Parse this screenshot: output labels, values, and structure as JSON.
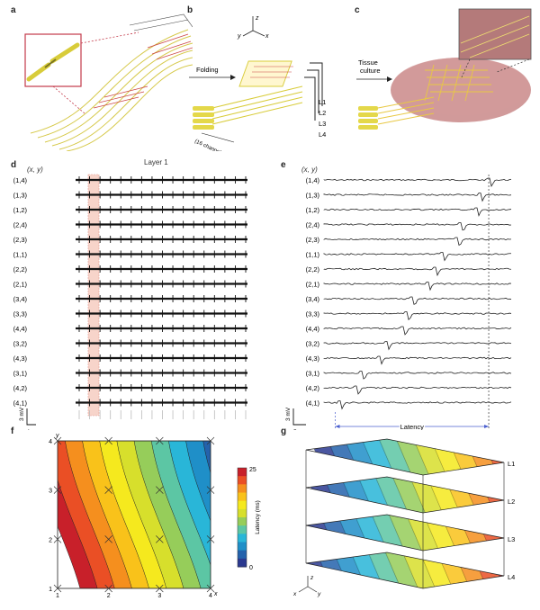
{
  "panels": {
    "a": {
      "label": "a"
    },
    "b": {
      "label": "b",
      "arrow_text": "Folding",
      "channels_text": "(16 channels)",
      "layers": [
        "L1",
        "L2",
        "L3",
        "L4"
      ],
      "axes": {
        "x": "x",
        "y": "y",
        "z": "z"
      }
    },
    "c": {
      "label": "c",
      "arrow_text_1": "Tissue",
      "arrow_text_2": "culture"
    },
    "d": {
      "label": "d",
      "title": "Layer 1",
      "header": "(x, y)",
      "scale_v": "3 mV",
      "scale_t": "1 s",
      "rows": [
        "(1,4)",
        "(1,3)",
        "(1,2)",
        "(2,4)",
        "(2,3)",
        "(1,1)",
        "(2,2)",
        "(2,1)",
        "(3,4)",
        "(3,3)",
        "(4,4)",
        "(3,2)",
        "(4,3)",
        "(3,1)",
        "(4,2)",
        "(4,1)"
      ]
    },
    "e": {
      "label": "e",
      "header": "(x, y)",
      "scale_v": "3 mV",
      "scale_t": "5 ms",
      "latency_text": "Latency",
      "rows": [
        "(1,4)",
        "(1,3)",
        "(1,2)",
        "(2,4)",
        "(2,3)",
        "(1,1)",
        "(2,2)",
        "(2,1)",
        "(3,4)",
        "(3,3)",
        "(4,4)",
        "(3,2)",
        "(4,3)",
        "(3,1)",
        "(4,2)",
        "(4,1)"
      ]
    },
    "f": {
      "label": "f",
      "y_label": "y",
      "x_label": "x",
      "x_ticks": [
        "1",
        "2",
        "3",
        "4"
      ],
      "y_ticks": [
        "1",
        "2",
        "3",
        "4"
      ],
      "colorbar_label": "Latency (ms)",
      "colorbar_max": "25",
      "colorbar_min": "0"
    },
    "g": {
      "label": "g",
      "layers": [
        "L1",
        "L2",
        "L3",
        "L4"
      ],
      "axes": {
        "x": "x",
        "y": "y",
        "z": "z"
      }
    }
  },
  "chart_data": [
    {
      "type": "line",
      "title": "Layer 1",
      "xlabel": "",
      "ylabel": "",
      "series_labels": [
        "(1,4)",
        "(1,3)",
        "(1,2)",
        "(2,4)",
        "(2,3)",
        "(1,1)",
        "(2,2)",
        "(2,1)",
        "(3,4)",
        "(3,3)",
        "(4,4)",
        "(3,2)",
        "(4,3)",
        "(3,1)",
        "(4,2)",
        "(4,1)"
      ],
      "spike_count_per_trace": 17,
      "scale_bars": {
        "voltage": "3 mV",
        "time": "1 s"
      }
    },
    {
      "type": "line",
      "title": "",
      "series_labels": [
        "(1,4)",
        "(1,3)",
        "(1,2)",
        "(2,4)",
        "(2,3)",
        "(1,1)",
        "(2,2)",
        "(2,1)",
        "(3,4)",
        "(3,3)",
        "(4,4)",
        "(3,2)",
        "(4,3)",
        "(3,1)",
        "(4,2)",
        "(4,1)"
      ],
      "spike_time_fraction": [
        0.88,
        0.83,
        0.81,
        0.73,
        0.71,
        0.63,
        0.59,
        0.55,
        0.47,
        0.44,
        0.42,
        0.33,
        0.29,
        0.2,
        0.17,
        0.08
      ],
      "scale_bars": {
        "voltage": "3 mV",
        "time": "5 ms"
      },
      "annotation": "Latency"
    },
    {
      "type": "heatmap",
      "title": "",
      "xlabel": "x",
      "ylabel": "y",
      "x_ticks": [
        1,
        2,
        3,
        4
      ],
      "y_ticks": [
        1,
        2,
        3,
        4
      ],
      "colorbar": {
        "label": "Latency (ms)",
        "min": 0,
        "max": 25
      },
      "levels": 12
    }
  ]
}
